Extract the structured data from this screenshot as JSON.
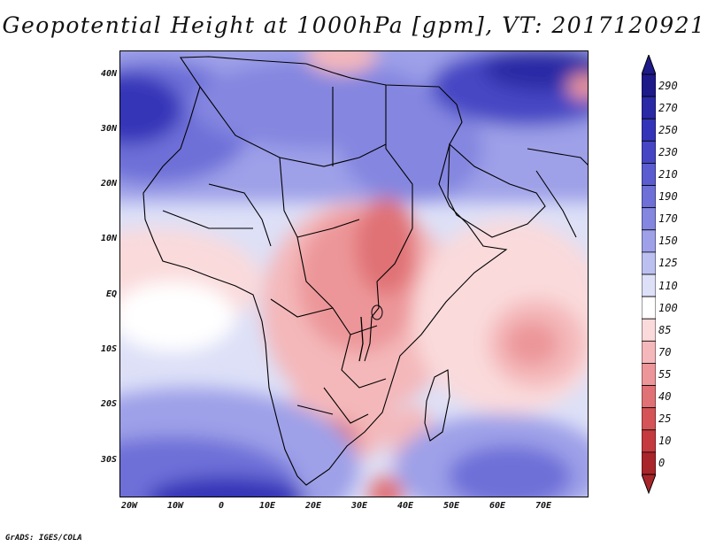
{
  "title": "Geopotential Height at 1000hPa [gpm], VT: 2017120921",
  "credit": "GrADS: IGES/COLA",
  "map": {
    "region": "Africa and Indian Ocean",
    "lon_range": [
      -22,
      80
    ],
    "lat_range": [
      -37,
      45
    ],
    "lat_ticks": [
      "40N",
      "30N",
      "20N",
      "10N",
      "EQ",
      "10S",
      "20S",
      "30S"
    ],
    "lon_ticks": [
      "20W",
      "10W",
      "0",
      "10E",
      "20E",
      "30E",
      "40E",
      "50E",
      "60E",
      "70E"
    ]
  },
  "colorbar": {
    "labels": [
      "290",
      "270",
      "250",
      "230",
      "210",
      "190",
      "170",
      "150",
      "125",
      "110",
      "100",
      "85",
      "70",
      "55",
      "40",
      "25",
      "10",
      "0"
    ],
    "colors": [
      "#1e1a8a",
      "#2a2aa6",
      "#3434b8",
      "#4646c4",
      "#5a5ccf",
      "#6e70d8",
      "#8486e0",
      "#9ea0e8",
      "#bcc0f0",
      "#dde0f7",
      "#ffffff",
      "#fadadb",
      "#f4b8ba",
      "#ec9699",
      "#e07276",
      "#d45457",
      "#c43a3e",
      "#a8252a"
    ]
  },
  "chart_data": {
    "type": "heatmap",
    "title": "Geopotential Height at 1000hPa [gpm], VT: 2017120921",
    "variable": "Geopotential Height at 1000hPa",
    "units": "gpm",
    "valid_time": "2017120921",
    "contour_levels": [
      0,
      10,
      25,
      40,
      55,
      70,
      85,
      100,
      110,
      125,
      150,
      170,
      190,
      210,
      230,
      250,
      270,
      290
    ],
    "x_axis": "Longitude",
    "y_axis": "Latitude",
    "xlim": [
      -22,
      80
    ],
    "ylim": [
      -37,
      45
    ]
  }
}
